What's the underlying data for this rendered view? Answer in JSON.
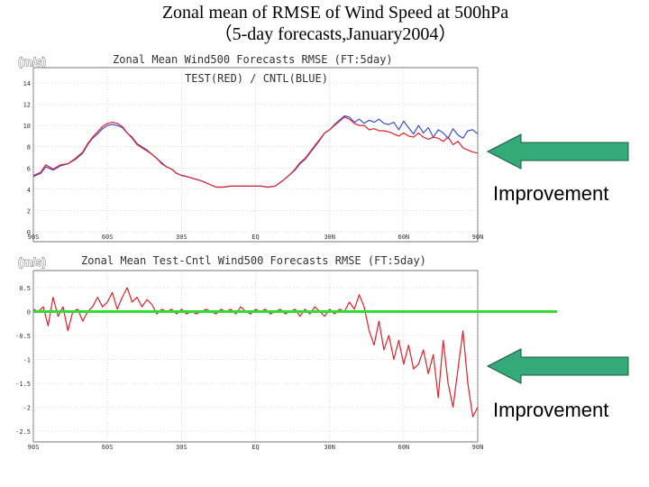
{
  "slide": {
    "title_line1": "Zonal mean of RMSE of Wind Speed at 500hPa",
    "title_line2": "（5-day forecasts,January2004）"
  },
  "colors": {
    "test": "#e0202a",
    "cntl": "#3a4fd8",
    "zero_line": "#33dd33",
    "arrow_fill": "#33aa77",
    "arrow_stroke": "#1f5a45",
    "grid": "#bbbbbb",
    "axis": "#555555"
  },
  "annotations": [
    {
      "text": "Improvement",
      "icon": "arrow-left-icon"
    },
    {
      "text": "Improvement",
      "icon": "arrow-left-icon"
    }
  ],
  "chart_data": [
    {
      "type": "line",
      "unit_label": "(m/s)",
      "title_line1": "Zonal Mean   Wind500 Forecasts RMSE (FT:5day)",
      "title_line2": "TEST(RED) / CNTL(BLUE)",
      "x_tick_labels": [
        "90S",
        "60S",
        "30S",
        "EQ",
        "30N",
        "60N",
        "90N"
      ],
      "x_ticks": [
        -90,
        -60,
        -30,
        0,
        30,
        60,
        90
      ],
      "xlim": [
        -90,
        90
      ],
      "y_ticks": [
        0,
        2,
        4,
        6,
        8,
        10,
        12,
        14
      ],
      "y_tick_labels": [
        "0",
        "2",
        "4",
        "6",
        "8",
        "10",
        "12",
        "14"
      ],
      "ylim": [
        0,
        15
      ],
      "grid": true,
      "series": [
        {
          "name": "TEST",
          "color_key": "test",
          "x": [
            -90,
            -87,
            -85,
            -82,
            -79,
            -76,
            -73,
            -70,
            -68,
            -66,
            -64,
            -62,
            -60,
            -58,
            -56,
            -54,
            -52,
            -50,
            -48,
            -46,
            -44,
            -42,
            -40,
            -38,
            -36,
            -34,
            -32,
            -30,
            -28,
            -25,
            -22,
            -19,
            -16,
            -13,
            -10,
            -7,
            -4,
            -1,
            2,
            5,
            8,
            11,
            14,
            16,
            18,
            20,
            22,
            24,
            26,
            28,
            30,
            32,
            34,
            36,
            38,
            40,
            42,
            44,
            46,
            48,
            50,
            52,
            54,
            56,
            58,
            60,
            62,
            64,
            66,
            68,
            70,
            72,
            74,
            76,
            78,
            80,
            82,
            84,
            86,
            88,
            90
          ],
          "y": [
            5.3,
            5.6,
            6.3,
            5.9,
            6.3,
            6.4,
            6.9,
            7.5,
            8.3,
            8.9,
            9.4,
            9.9,
            10.2,
            10.3,
            10.2,
            9.9,
            9.3,
            8.8,
            8.2,
            7.9,
            7.6,
            7.3,
            6.9,
            6.4,
            6.1,
            5.9,
            5.5,
            5.3,
            5.2,
            5.0,
            4.8,
            4.5,
            4.2,
            4.2,
            4.3,
            4.3,
            4.3,
            4.3,
            4.3,
            4.2,
            4.3,
            4.8,
            5.4,
            5.9,
            6.5,
            6.9,
            7.5,
            8.1,
            8.7,
            9.3,
            9.6,
            10.0,
            10.4,
            10.8,
            10.6,
            10.2,
            10.0,
            10.0,
            9.6,
            9.7,
            9.5,
            9.5,
            9.4,
            9.2,
            9.0,
            9.3,
            9.0,
            8.9,
            9.3,
            8.9,
            8.7,
            8.9,
            8.8,
            8.5,
            8.9,
            8.2,
            8.5,
            7.9,
            7.7,
            7.5,
            7.4
          ]
        },
        {
          "name": "CNTL",
          "color_key": "cntl",
          "x": [
            -90,
            -87,
            -85,
            -82,
            -79,
            -76,
            -73,
            -70,
            -68,
            -66,
            -64,
            -62,
            -60,
            -58,
            -56,
            -54,
            -52,
            -50,
            -48,
            -46,
            -44,
            -42,
            -40,
            -38,
            -36,
            -34,
            -32,
            -30,
            -28,
            -25,
            -22,
            -19,
            -16,
            -13,
            -10,
            -7,
            -4,
            -1,
            2,
            5,
            8,
            11,
            14,
            16,
            18,
            20,
            22,
            24,
            26,
            28,
            30,
            32,
            34,
            36,
            38,
            40,
            42,
            44,
            46,
            48,
            50,
            52,
            54,
            56,
            58,
            60,
            62,
            64,
            66,
            68,
            70,
            72,
            74,
            76,
            78,
            80,
            82,
            84,
            86,
            88,
            90
          ],
          "y": [
            5.2,
            5.5,
            6.1,
            5.8,
            6.2,
            6.4,
            6.8,
            7.4,
            8.2,
            8.8,
            9.2,
            9.7,
            10.0,
            10.1,
            10.0,
            9.8,
            9.3,
            8.9,
            8.3,
            8.0,
            7.7,
            7.3,
            6.9,
            6.5,
            6.1,
            5.9,
            5.5,
            5.3,
            5.2,
            5.0,
            4.8,
            4.5,
            4.2,
            4.2,
            4.3,
            4.3,
            4.3,
            4.3,
            4.3,
            4.2,
            4.3,
            4.8,
            5.4,
            5.8,
            6.4,
            6.8,
            7.4,
            8.0,
            8.6,
            9.3,
            9.6,
            10.1,
            10.5,
            10.9,
            10.8,
            10.3,
            10.6,
            10.2,
            10.5,
            10.3,
            10.6,
            10.2,
            10.1,
            10.3,
            9.6,
            10.4,
            9.8,
            9.2,
            10.0,
            9.3,
            9.8,
            8.9,
            9.6,
            9.3,
            8.8,
            9.7,
            9.1,
            8.8,
            9.5,
            9.6,
            9.2
          ]
        }
      ]
    },
    {
      "type": "line",
      "unit_label": "(m/s)",
      "title_line1": "Zonal Mean   Test-Cntl Wind500 Forecasts RMSE (FT:5day)",
      "x_tick_labels": [
        "90S",
        "60S",
        "30S",
        "EQ",
        "30N",
        "60N",
        "90N"
      ],
      "x_ticks": [
        -90,
        -60,
        -30,
        0,
        30,
        60,
        90
      ],
      "xlim": [
        -90,
        90
      ],
      "y_ticks": [
        0.5,
        0,
        -0.5,
        -1,
        -1.5,
        -2,
        -2.5
      ],
      "y_tick_labels": [
        "0.5",
        "0",
        "-0.5",
        "-1",
        "-1.5",
        "-2",
        "-2.5"
      ],
      "ylim": [
        -2.5,
        0.5
      ],
      "grid": true,
      "reference_line": 0,
      "series": [
        {
          "name": "Test-Cntl",
          "color_key": "test",
          "x": [
            -90,
            -88,
            -86,
            -84,
            -82,
            -80,
            -78,
            -76,
            -74,
            -72,
            -70,
            -68,
            -66,
            -64,
            -62,
            -60,
            -58,
            -56,
            -54,
            -52,
            -50,
            -48,
            -46,
            -44,
            -42,
            -40,
            -38,
            -36,
            -34,
            -32,
            -30,
            -28,
            -26,
            -24,
            -22,
            -20,
            -18,
            -16,
            -14,
            -12,
            -10,
            -8,
            -6,
            -4,
            -2,
            0,
            2,
            4,
            6,
            8,
            10,
            12,
            14,
            16,
            18,
            20,
            22,
            24,
            26,
            28,
            30,
            32,
            34,
            36,
            38,
            40,
            42,
            44,
            46,
            48,
            50,
            52,
            54,
            56,
            58,
            60,
            62,
            64,
            66,
            68,
            70,
            72,
            74,
            76,
            78,
            80,
            82,
            84,
            86,
            88,
            90
          ],
          "y": [
            0.05,
            0.0,
            0.1,
            -0.3,
            0.3,
            -0.1,
            0.1,
            -0.4,
            0.0,
            0.05,
            -0.2,
            0.0,
            0.1,
            0.3,
            0.1,
            0.2,
            0.4,
            0.05,
            0.3,
            0.5,
            0.2,
            0.3,
            0.1,
            0.25,
            0.15,
            -0.05,
            0.05,
            0.0,
            0.05,
            -0.05,
            0.05,
            -0.05,
            0.0,
            -0.05,
            0.0,
            0.05,
            0.0,
            -0.05,
            0.05,
            0.0,
            0.05,
            -0.05,
            0.1,
            0.0,
            -0.05,
            0.05,
            0.0,
            0.05,
            -0.05,
            0.0,
            0.05,
            -0.05,
            0.0,
            0.05,
            -0.1,
            0.05,
            -0.05,
            0.1,
            0.0,
            -0.1,
            0.05,
            -0.05,
            0.05,
            0.0,
            0.2,
            0.05,
            0.35,
            0.1,
            -0.4,
            -0.7,
            -0.2,
            -0.8,
            -0.5,
            -1.0,
            -0.6,
            -1.1,
            -0.7,
            -1.2,
            -1.1,
            -0.8,
            -1.3,
            -0.9,
            -1.8,
            -0.6,
            -1.5,
            -2.0,
            -1.2,
            -0.4,
            -1.5,
            -2.2,
            -2.0
          ]
        }
      ]
    }
  ]
}
